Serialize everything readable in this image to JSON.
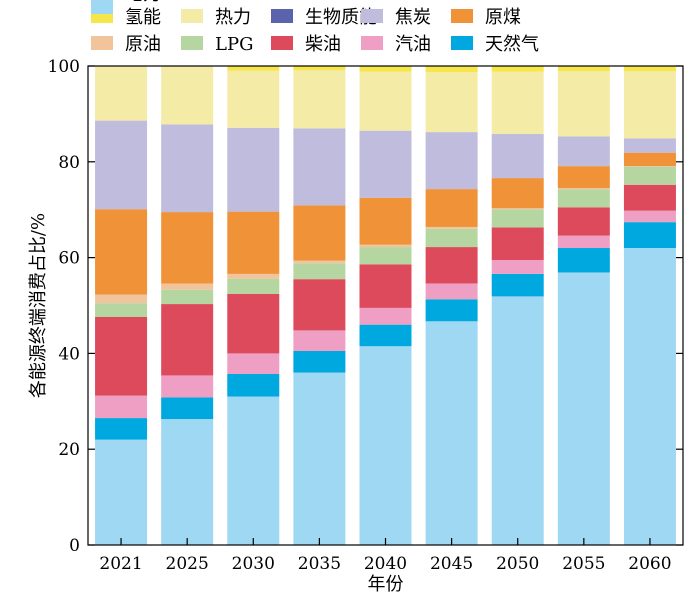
{
  "chart_data": {
    "type": "bar",
    "stacked": true,
    "xlabel": "年份",
    "ylabel": "各能源终端消费占比/%",
    "ylim": [
      0,
      100
    ],
    "yticks": [
      0,
      20,
      40,
      60,
      80,
      100
    ],
    "grid": false,
    "legend_position": "top",
    "categories": [
      "2021",
      "2025",
      "2030",
      "2035",
      "2040",
      "2045",
      "2050",
      "2055",
      "2060"
    ],
    "series": [
      {
        "name": "电力",
        "color": "#9fd8f2",
        "values": [
          22,
          26.3,
          31,
          36,
          41.5,
          46.7,
          51.9,
          56.9,
          62
        ]
      },
      {
        "name": "天然气",
        "color": "#00a8e0",
        "values": [
          4.5,
          4.5,
          4.7,
          4.5,
          4.5,
          4.6,
          4.7,
          5.1,
          5.4
        ]
      },
      {
        "name": "汽油",
        "color": "#ee9fc3",
        "values": [
          4.7,
          4.6,
          4.3,
          4.3,
          3.5,
          3.3,
          2.9,
          2.6,
          2.4
        ]
      },
      {
        "name": "柴油",
        "color": "#dd4a5b",
        "values": [
          16.4,
          14.9,
          12.4,
          10.7,
          9.1,
          7.6,
          6.8,
          5.9,
          5.4
        ]
      },
      {
        "name": "LPG",
        "color": "#b5d6a1",
        "values": [
          2.9,
          3,
          3.2,
          3.3,
          3.6,
          3.8,
          3.8,
          3.8,
          3.8
        ]
      },
      {
        "name": "原油",
        "color": "#f2c49b",
        "values": [
          1.8,
          1.3,
          1,
          0.6,
          0.5,
          0.4,
          0.2,
          0.2,
          0.1
        ]
      },
      {
        "name": "原煤",
        "color": "#f09238",
        "values": [
          17.8,
          14.9,
          13,
          11.5,
          9.8,
          7.9,
          6.3,
          4.6,
          2.8
        ]
      },
      {
        "name": "焦炭",
        "color": "#bfbcdd",
        "values": [
          18.5,
          18.3,
          17.5,
          16.1,
          14,
          11.9,
          9.2,
          6.2,
          3
        ]
      },
      {
        "name": "生物质能",
        "color": "#5a64ad",
        "values": [
          0,
          0,
          0,
          0,
          0,
          0,
          0,
          0,
          0
        ]
      },
      {
        "name": "热力",
        "color": "#f4eca6",
        "values": [
          11.4,
          12.2,
          11.9,
          12.1,
          12.3,
          12.5,
          13,
          13.6,
          14
        ]
      },
      {
        "name": "氢能",
        "color": "#f7e64b",
        "values": [
          0,
          0,
          1,
          0.9,
          1.2,
          1.3,
          1.2,
          1.1,
          1.1
        ]
      }
    ],
    "legend_order": [
      "氢能",
      "热力",
      "生物质能",
      "焦炭",
      "原煤",
      "原油",
      "LPG",
      "柴油",
      "汽油",
      "天然气",
      "电力"
    ]
  }
}
